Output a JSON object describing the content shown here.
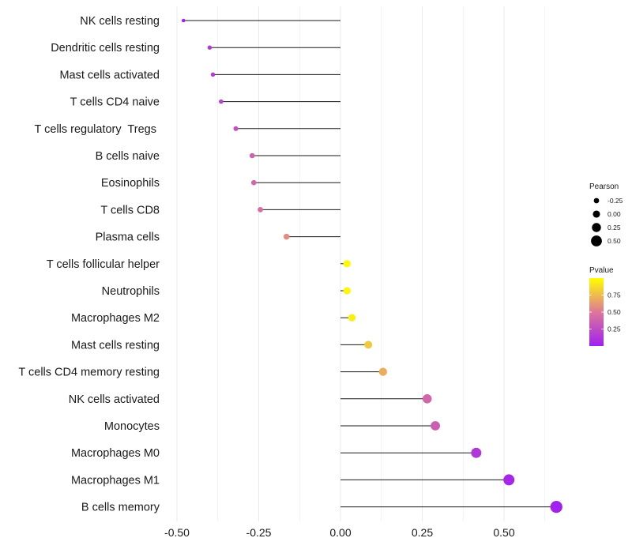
{
  "chart_data": {
    "type": "lollipop",
    "title": "",
    "xlabel": "",
    "ylabel": "",
    "xlim": [
      -0.52,
      0.68
    ],
    "xticks": [
      -0.5,
      -0.25,
      0.0,
      0.25,
      0.5
    ],
    "xtick_labels": [
      "-0.50",
      "-0.25",
      "0.00",
      "0.25",
      "0.50"
    ],
    "grid": true,
    "points": [
      {
        "label": "NK cells resting",
        "pearson": -0.48,
        "pvalue": 0.01
      },
      {
        "label": "Dendritic cells resting",
        "pearson": -0.4,
        "pvalue": 0.14
      },
      {
        "label": "Mast cells activated",
        "pearson": -0.39,
        "pvalue": 0.16
      },
      {
        "label": "T cells CD4 naive",
        "pearson": -0.365,
        "pvalue": 0.2
      },
      {
        "label": "T cells regulatory  Tregs ",
        "pearson": -0.32,
        "pvalue": 0.29
      },
      {
        "label": "B cells naive",
        "pearson": -0.27,
        "pvalue": 0.38
      },
      {
        "label": "Eosinophils",
        "pearson": -0.265,
        "pvalue": 0.4
      },
      {
        "label": "T cells CD8",
        "pearson": -0.245,
        "pvalue": 0.44
      },
      {
        "label": "Plasma cells",
        "pearson": -0.165,
        "pvalue": 0.58
      },
      {
        "label": "T cells follicular helper",
        "pearson": 0.02,
        "pvalue": 0.98
      },
      {
        "label": "Neutrophils",
        "pearson": 0.02,
        "pvalue": 0.97
      },
      {
        "label": "Macrophages M2",
        "pearson": 0.035,
        "pvalue": 0.94
      },
      {
        "label": "Mast cells resting",
        "pearson": 0.085,
        "pvalue": 0.8
      },
      {
        "label": "T cells CD4 memory resting",
        "pearson": 0.13,
        "pvalue": 0.7
      },
      {
        "label": "NK cells activated",
        "pearson": 0.265,
        "pvalue": 0.4
      },
      {
        "label": "Monocytes",
        "pearson": 0.29,
        "pvalue": 0.35
      },
      {
        "label": "Macrophages M0",
        "pearson": 0.415,
        "pvalue": 0.14
      },
      {
        "label": "Macrophages M1",
        "pearson": 0.515,
        "pvalue": 0.04
      },
      {
        "label": "B cells memory",
        "pearson": 0.66,
        "pvalue": 0.01
      }
    ],
    "legend": {
      "size_title": "Pearson",
      "size_values": [
        -0.25,
        0.0,
        0.25,
        0.5
      ],
      "size_labels": [
        "-0.25",
        "0.00",
        "0.25",
        "0.50"
      ],
      "color_title": "Pvalue",
      "color_values": [
        0.75,
        0.5,
        0.25
      ],
      "color_labels": [
        "0.75",
        "0.50",
        "0.25"
      ],
      "color_range": [
        0.0,
        1.0
      ],
      "color_low": "#a020f0",
      "color_mid": "#dd7799",
      "color_high": "#ffff00",
      "placement": "right"
    },
    "colors": {
      "stem": "#1a1a1a",
      "grid": "#ebebeb",
      "legend_dot": "#000000"
    }
  }
}
